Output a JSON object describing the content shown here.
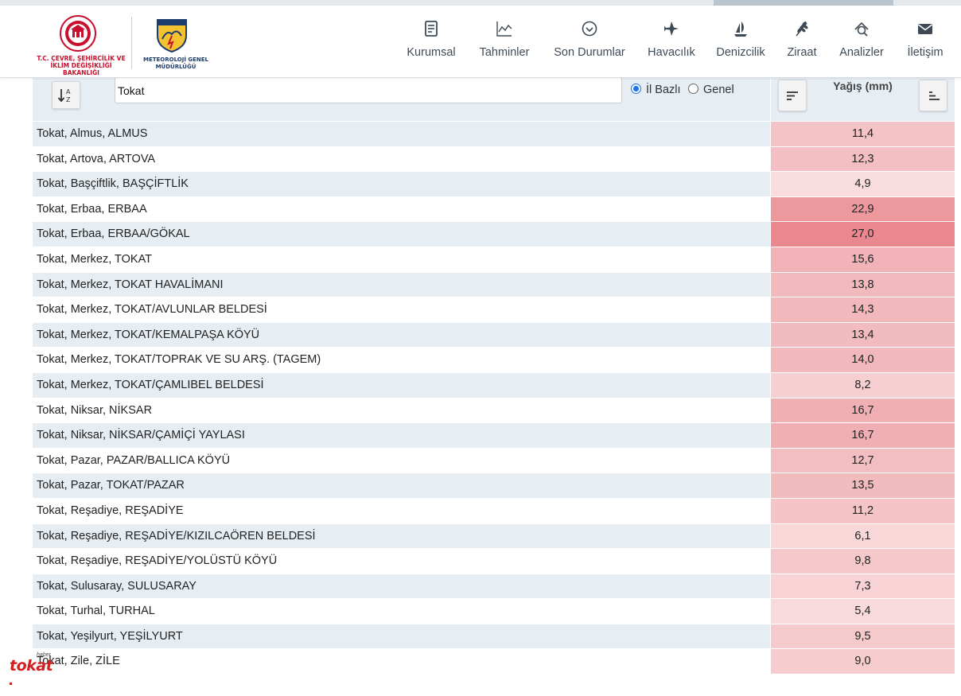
{
  "header": {
    "ministry_logo_text": "T.C. ÇEVRE, ŞEHİRCİLİK VE İKLİM DEĞİŞİKLİĞİ BAKANLIĞI",
    "mgm_logo_text": "METEOROLOJİ GENEL MÜDÜRLÜĞÜ",
    "nav": [
      {
        "label": "Kurumsal",
        "icon": "document-icon"
      },
      {
        "label": "Tahminler",
        "icon": "chart-line-icon"
      },
      {
        "label": "Son Durumlar",
        "icon": "circle-check-icon"
      },
      {
        "label": "Havacılık",
        "icon": "airplane-icon"
      },
      {
        "label": "Denizcilik",
        "icon": "sailboat-icon"
      },
      {
        "label": "Ziraat",
        "icon": "wheat-icon"
      },
      {
        "label": "Analizler",
        "icon": "magnifier-icon"
      },
      {
        "label": "İletişim",
        "icon": "envelope-icon"
      }
    ]
  },
  "controls": {
    "search_value": "Tokat",
    "radio_province": "İl Bazlı",
    "radio_general": "Genel",
    "selected_radio": "province"
  },
  "table": {
    "value_header": "Yağış (mm)",
    "rows": [
      {
        "name": "Tokat, Almus, ALMUS",
        "value": "11,4",
        "amount": 11.4
      },
      {
        "name": "Tokat, Artova, ARTOVA",
        "value": "12,3",
        "amount": 12.3
      },
      {
        "name": "Tokat, Başçiftlik, BAŞÇİFTLİK",
        "value": "4,9",
        "amount": 4.9
      },
      {
        "name": "Tokat, Erbaa, ERBAA",
        "value": "22,9",
        "amount": 22.9
      },
      {
        "name": "Tokat, Erbaa, ERBAA/GÖKAL",
        "value": "27,0",
        "amount": 27.0
      },
      {
        "name": "Tokat, Merkez, TOKAT",
        "value": "15,6",
        "amount": 15.6
      },
      {
        "name": "Tokat, Merkez, TOKAT HAVALİMANI",
        "value": "13,8",
        "amount": 13.8
      },
      {
        "name": "Tokat, Merkez, TOKAT/AVLUNLAR BELDESİ",
        "value": "14,3",
        "amount": 14.3
      },
      {
        "name": "Tokat, Merkez, TOKAT/KEMALPAŞA KÖYÜ",
        "value": "13,4",
        "amount": 13.4
      },
      {
        "name": "Tokat, Merkez, TOKAT/TOPRAK VE SU ARŞ. (TAGEM)",
        "value": "14,0",
        "amount": 14.0
      },
      {
        "name": "Tokat, Merkez, TOKAT/ÇAMLIBEL BELDESİ",
        "value": "8,2",
        "amount": 8.2
      },
      {
        "name": "Tokat, Niksar, NİKSAR",
        "value": "16,7",
        "amount": 16.7
      },
      {
        "name": "Tokat, Niksar, NİKSAR/ÇAMİÇİ YAYLASI",
        "value": "16,7",
        "amount": 16.7
      },
      {
        "name": "Tokat, Pazar, PAZAR/BALLICA KÖYÜ",
        "value": "12,7",
        "amount": 12.7
      },
      {
        "name": "Tokat, Pazar, TOKAT/PAZAR",
        "value": "13,5",
        "amount": 13.5
      },
      {
        "name": "Tokat, Reşadiye, REŞADİYE",
        "value": "11,2",
        "amount": 11.2
      },
      {
        "name": "Tokat, Reşadiye, REŞADİYE/KIZILCAÖREN BELDESİ",
        "value": "6,1",
        "amount": 6.1
      },
      {
        "name": "Tokat, Reşadiye, REŞADİYE/YOLÜSTÜ KÖYÜ",
        "value": "9,8",
        "amount": 9.8
      },
      {
        "name": "Tokat, Sulusaray, SULUSARAY",
        "value": "7,3",
        "amount": 7.3
      },
      {
        "name": "Tokat, Turhal, TURHAL",
        "value": "5,4",
        "amount": 5.4
      },
      {
        "name": "Tokat, Yeşilyurt, YEŞİLYURT",
        "value": "9,5",
        "amount": 9.5
      },
      {
        "name": "Tokat, Zile, ZİLE",
        "value": "9,0",
        "amount": 9.0
      }
    ]
  },
  "watermark": {
    "brand_word": "tokat",
    "brand_small": "haber"
  },
  "colors": {
    "row_alt": "#e7eef3",
    "accent_red": "#d21f1f",
    "radio_blue": "#1a73e8",
    "heat_base": "#e57373"
  }
}
